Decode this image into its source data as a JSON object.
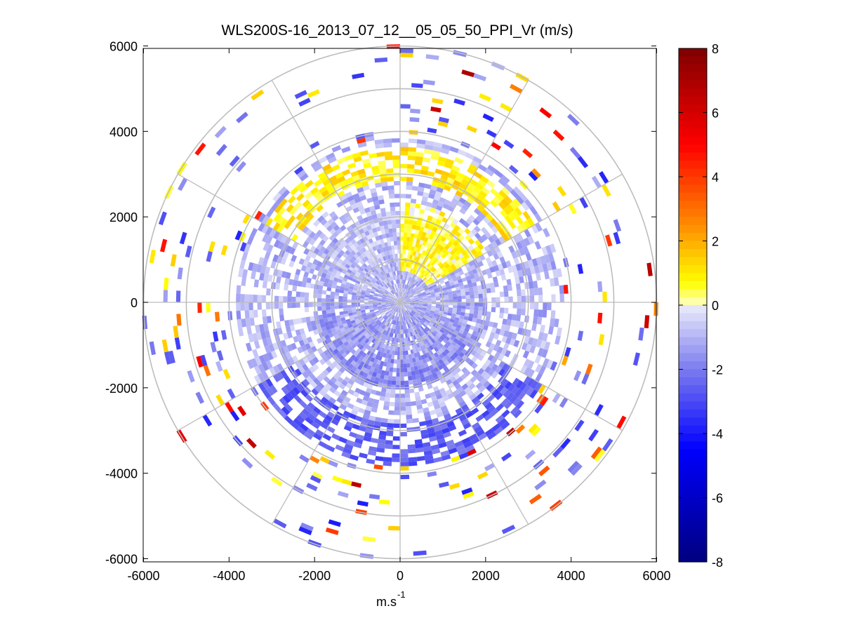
{
  "chart_data": {
    "type": "heatmap",
    "subtype": "polar-ppi",
    "title": "WLS200S-16_2013_07_12__05_05_50_PPI_Vr (m/s)",
    "xlabel_base": "m.s",
    "xlabel_exp": "-1",
    "xlim": [
      -6000,
      6000
    ],
    "ylim": [
      -6000,
      6000
    ],
    "x_ticks": [
      "-6000",
      "-4000",
      "-2000",
      "0",
      "2000",
      "4000",
      "6000"
    ],
    "y_ticks": [
      "6000",
      "4000",
      "2000",
      "0",
      "-2000",
      "-4000",
      "-6000"
    ],
    "range_rings": [
      1000,
      2000,
      3000,
      4000,
      5000,
      6000
    ],
    "radial_spokes_deg": [
      0,
      30,
      60,
      90,
      120,
      150,
      180,
      210,
      240,
      270,
      300,
      330
    ],
    "colorbar": {
      "min": -8,
      "max": 8,
      "tick_labels": [
        "8",
        "6",
        "4",
        "2",
        "0",
        "-2",
        "-4",
        "-6",
        "-8"
      ],
      "stops": [
        {
          "v": -8,
          "color": "#00007f"
        },
        {
          "v": -4.5,
          "color": "#0000ff"
        },
        {
          "v": -2,
          "color": "#7b7bef"
        },
        {
          "v": 0,
          "color": "#ececfb"
        },
        {
          "v": 0.01,
          "color": "#ffffc8"
        },
        {
          "v": 0.7,
          "color": "#ffff00"
        },
        {
          "v": 2.5,
          "color": "#ff8c00"
        },
        {
          "v": 5,
          "color": "#ff0000"
        },
        {
          "v": 8,
          "color": "#7f0000"
        }
      ]
    },
    "regions": [
      {
        "name": "near-field",
        "r_range": [
          40,
          2000
        ],
        "az_range": [
          0,
          360
        ],
        "mean_vr": -1.2
      },
      {
        "name": "north-yellow-band",
        "r_range": [
          700,
          2300
        ],
        "az_range": [
          0,
          60
        ],
        "mean_vr": 0.6
      },
      {
        "name": "north-positive-arc",
        "r_range": [
          2800,
          3600
        ],
        "az_range": [
          300,
          60
        ],
        "mean_vr": 1.0
      },
      {
        "name": "south-negative-arc",
        "r_range": [
          2800,
          3800
        ],
        "az_range": [
          120,
          240
        ],
        "mean_vr": -2.6
      },
      {
        "name": "outer-sparse",
        "r_range": [
          3600,
          6000
        ],
        "az_range": [
          0,
          360
        ],
        "mean_vr": -1.0
      }
    ]
  }
}
